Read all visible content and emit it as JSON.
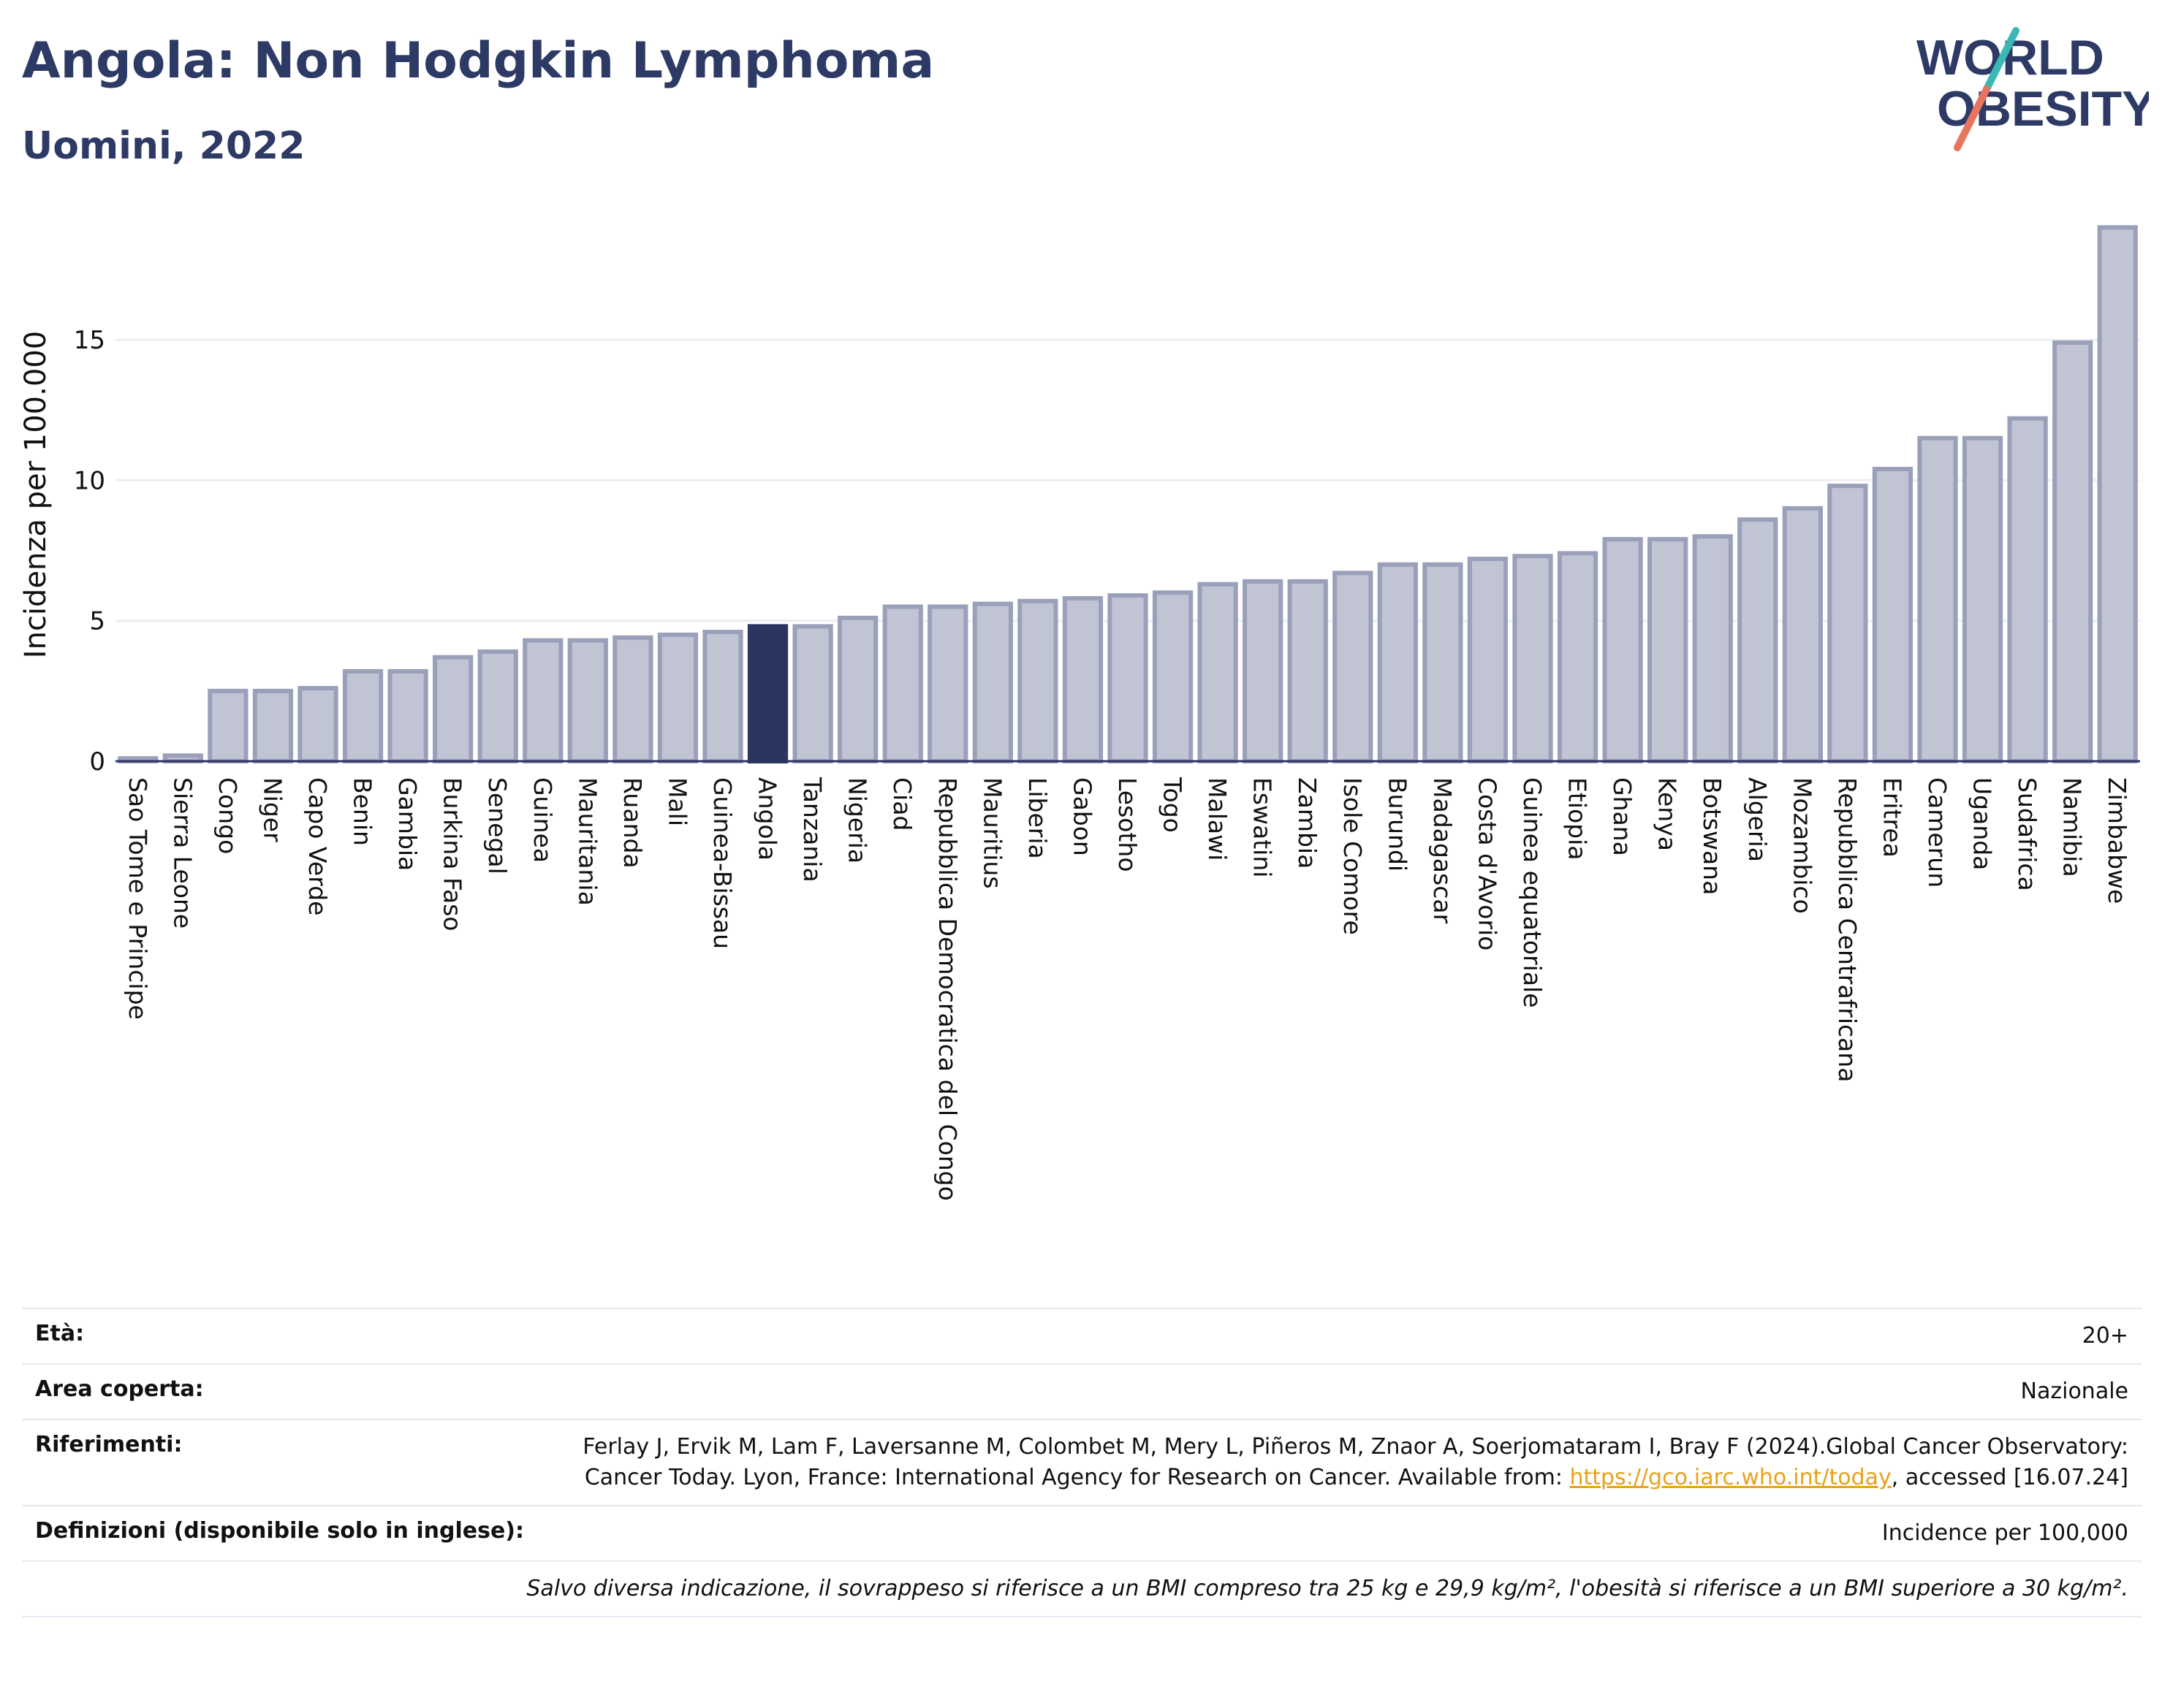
{
  "header": {
    "title": "Angola: Non Hodgkin Lymphoma",
    "subtitle": "Uomini, 2022"
  },
  "logo": {
    "line1": "WORLD",
    "line2": "OBESITY"
  },
  "colors": {
    "bar": "#c0c4d3",
    "bar_border": "#9aa0ba",
    "highlight": "#2b3560",
    "grid": "#eceef4",
    "axis": "#2b3560",
    "logo_text": "#2d3a66",
    "logo_teal": "#3bb8b4",
    "logo_coral": "#e8735f"
  },
  "chart_data": {
    "type": "bar",
    "ylabel": "Incidenza per 100.000",
    "yticks": [
      0,
      5,
      10,
      15
    ],
    "ylim": [
      0,
      19.5
    ],
    "highlight": "Angola",
    "grid": true,
    "categories": [
      "Sao Tome e Principe",
      "Sierra Leone",
      "Congo",
      "Niger",
      "Capo Verde",
      "Benin",
      "Gambia",
      "Burkina Faso",
      "Senegal",
      "Guinea",
      "Mauritania",
      "Ruanda",
      "Mali",
      "Guinea-Bissau",
      "Angola",
      "Tanzania",
      "Nigeria",
      "Ciad",
      "Repubblica Democratica del Congo",
      "Mauritius",
      "Liberia",
      "Gabon",
      "Lesotho",
      "Togo",
      "Malawi",
      "Eswatini",
      "Zambia",
      "Isole Comore",
      "Burundi",
      "Madagascar",
      "Costa d'Avorio",
      "Guinea equatoriale",
      "Etiopia",
      "Ghana",
      "Kenya",
      "Botswana",
      "Algeria",
      "Mozambico",
      "Repubblica Centrafricana",
      "Eritrea",
      "Camerun",
      "Uganda",
      "Sudafrica",
      "Namibia",
      "Zimbabwe"
    ],
    "values": [
      0.1,
      0.2,
      2.5,
      2.5,
      2.6,
      3.2,
      3.2,
      3.7,
      3.9,
      4.3,
      4.3,
      4.4,
      4.5,
      4.6,
      4.8,
      4.8,
      5.1,
      5.5,
      5.5,
      5.6,
      5.7,
      5.8,
      5.9,
      6.0,
      6.3,
      6.4,
      6.4,
      6.7,
      7.0,
      7.0,
      7.2,
      7.3,
      7.4,
      7.9,
      7.9,
      8.0,
      8.6,
      9.0,
      9.8,
      10.4,
      11.5,
      11.5,
      12.2,
      14.9,
      19.0
    ]
  },
  "meta": {
    "age_label": "Età:",
    "age_value": "20+",
    "area_label": "Area coperta:",
    "area_value": "Nazionale",
    "refs_label": "Riferimenti:",
    "refs_text": "Ferlay J, Ervik M, Lam F, Laversanne M, Colombet M, Mery L, Piñeros M, Znaor A, Soerjomataram I, Bray F (2024).Global Cancer Observatory: Cancer Today. Lyon, France: International Agency for Research on Cancer. Available from: ",
    "refs_link": "https://gco.iarc.who.int/today",
    "refs_tail": ", accessed [16.07.24]",
    "def_label": "Definizioni (disponibile solo in inglese):",
    "def_value": "Incidence per 100,000",
    "note": "Salvo diversa indicazione, il sovrappeso si riferisce a un BMI compreso tra 25 kg e 29,9 kg/m², l'obesità si riferisce a un BMI superiore a 30 kg/m²."
  }
}
